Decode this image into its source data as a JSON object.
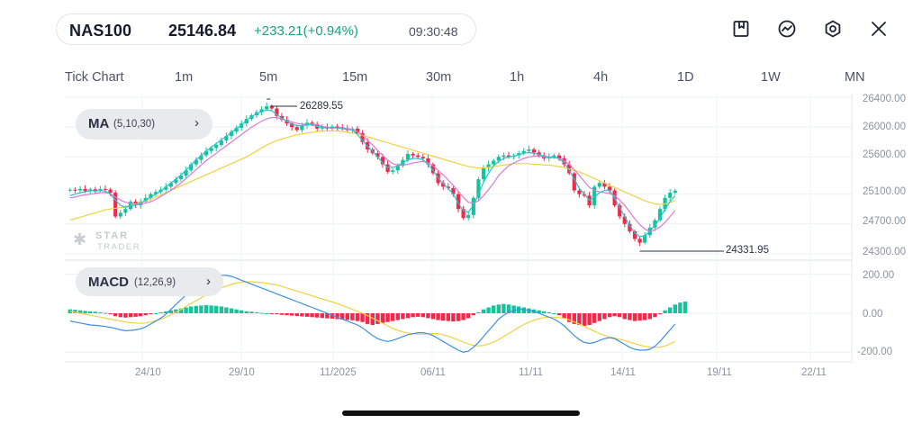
{
  "header": {
    "symbol": "NAS100",
    "price": "25146.84",
    "change": "+233.21(+0.94%)",
    "time": "09:30:48",
    "icons": [
      "bookmark-icon",
      "indicator-icon",
      "settings-icon",
      "close-icon"
    ]
  },
  "timeframes": [
    "Tick Chart",
    "1m",
    "5m",
    "15m",
    "30m",
    "1h",
    "4h",
    "1D",
    "1W",
    "MN"
  ],
  "ma_badge": {
    "name": "MA",
    "params": "(5,10,30)",
    "chevron": "›"
  },
  "macd_badge": {
    "name": "MACD",
    "params": "(12,26,9)",
    "chevron": "›"
  },
  "watermark": {
    "brand": "STAR",
    "sub": "TRADER"
  },
  "colors": {
    "up": "#15c39a",
    "down": "#f0284a",
    "ma5": "#27c3d2",
    "ma10": "#d97ad6",
    "ma30": "#f0d240",
    "macd_line": "#3d8fe3",
    "signal_line": "#f0d240"
  },
  "chart_data": {
    "type": "candlestick",
    "price_axis": {
      "ticks": [
        "26400.00",
        "26000.00",
        "25600.00",
        "25100.00",
        "24700.00",
        "24300.00"
      ],
      "range": [
        24250,
        26450
      ]
    },
    "macd_axis": {
      "ticks": [
        "200.00",
        "0.00",
        "-200.00"
      ],
      "range": [
        -250,
        250
      ]
    },
    "x_ticks": [
      "24/10",
      "29/10",
      "11/2025",
      "06/11",
      "11/11",
      "14/11",
      "19/11",
      "22/11"
    ],
    "annotations": {
      "high": "26289.55",
      "low": "24331.95"
    },
    "close": [
      25160,
      25150,
      25170,
      25140,
      25165,
      25150,
      25170,
      25160,
      25120,
      24800,
      24850,
      24900,
      25000,
      24950,
      25000,
      25050,
      25100,
      25130,
      25160,
      25200,
      25250,
      25300,
      25350,
      25420,
      25500,
      25560,
      25620,
      25680,
      25720,
      25760,
      25820,
      25880,
      25940,
      25990,
      26050,
      26110,
      26160,
      26200,
      26240,
      26280,
      26250,
      26150,
      26100,
      26050,
      26000,
      25960,
      26020,
      26060,
      26040,
      25980,
      26000,
      25980,
      26010,
      26000,
      25980,
      25960,
      25980,
      25920,
      25800,
      25700,
      25650,
      25600,
      25500,
      25400,
      25420,
      25480,
      25560,
      25640,
      25620,
      25600,
      25580,
      25500,
      25380,
      25250,
      25200,
      25180,
      25100,
      24900,
      24780,
      24820,
      25050,
      25300,
      25450,
      25500,
      25550,
      25600,
      25620,
      25600,
      25620,
      25650,
      25680,
      25700,
      25660,
      25620,
      25580,
      25600,
      25620,
      25580,
      25500,
      25380,
      25150,
      25100,
      25080,
      24950,
      25200,
      25250,
      25200,
      25150,
      24950,
      24800,
      24700,
      24600,
      24500,
      24450,
      24550,
      24650,
      24750,
      24900,
      25050,
      25120,
      25146.84
    ],
    "ma5": [
      25080,
      25100,
      25120,
      25130,
      25150,
      25140,
      25150,
      25140,
      25100,
      25020,
      24950,
      24920,
      24950,
      24950,
      24980,
      25020,
      25060,
      25100,
      25140,
      25200,
      25250,
      25300,
      25360,
      25420,
      25490,
      25560,
      25620,
      25680,
      25730,
      25780,
      25830,
      25880,
      25930,
      25980,
      26030,
      26090,
      26140,
      26180,
      26210,
      26230,
      26220,
      26170,
      26120,
      26080,
      26040,
      26020,
      26020,
      26030,
      26030,
      26010,
      26000,
      25990,
      26000,
      25990,
      25980,
      25970,
      25960,
      25900,
      25820,
      25740,
      25680,
      25600,
      25520,
      25460,
      25460,
      25480,
      25520,
      25560,
      25580,
      25580,
      25560,
      25500,
      25420,
      25320,
      25240,
      25180,
      25100,
      24980,
      24880,
      24860,
      24950,
      25100,
      25260,
      25380,
      25480,
      25540,
      25580,
      25600,
      25610,
      25630,
      25650,
      25660,
      25650,
      25630,
      25610,
      25600,
      25600,
      25580,
      25520,
      25420,
      25300,
      25180,
      25100,
      25020,
      25060,
      25120,
      25150,
      25150,
      25050,
      24920,
      24800,
      24680,
      24580,
      24530,
      24540,
      24600,
      24680,
      24780,
      24900,
      25000,
      25080
    ],
    "ma10": [
      25050,
      25060,
      25080,
      25090,
      25100,
      25110,
      25120,
      25120,
      25110,
      25060,
      25020,
      24990,
      24980,
      24970,
      24970,
      24980,
      25000,
      25030,
      25070,
      25110,
      25150,
      25200,
      25250,
      25310,
      25370,
      25430,
      25490,
      25550,
      25600,
      25650,
      25700,
      25750,
      25800,
      25850,
      25900,
      25950,
      26000,
      26040,
      26080,
      26110,
      26130,
      26130,
      26110,
      26090,
      26070,
      26050,
      26040,
      26040,
      26040,
      26030,
      26010,
      26000,
      25990,
      25990,
      25990,
      25980,
      25970,
      25940,
      25890,
      25830,
      25760,
      25690,
      25620,
      25560,
      25510,
      25490,
      25490,
      25500,
      25520,
      25530,
      25540,
      25520,
      25480,
      25420,
      25360,
      25290,
      25220,
      25140,
      25060,
      24990,
      24980,
      25010,
      25080,
      25160,
      25250,
      25350,
      25420,
      25480,
      25520,
      25550,
      25580,
      25600,
      25610,
      25610,
      25600,
      25590,
      25590,
      25580,
      25550,
      25500,
      25430,
      25350,
      25270,
      25190,
      25150,
      25130,
      25120,
      25110,
      25080,
      25020,
      24950,
      24860,
      24770,
      24690,
      24630,
      24600,
      24620,
      24660,
      24720,
      24800,
      24880
    ],
    "ma30": [
      24750,
      24770,
      24790,
      24810,
      24830,
      24850,
      24870,
      24890,
      24900,
      24910,
      24920,
      24930,
      24950,
      24970,
      24990,
      25010,
      25030,
      25060,
      25090,
      25120,
      25150,
      25180,
      25210,
      25240,
      25270,
      25300,
      25330,
      25360,
      25390,
      25420,
      25450,
      25480,
      25510,
      25540,
      25570,
      25600,
      25640,
      25680,
      25720,
      25760,
      25790,
      25820,
      25840,
      25860,
      25880,
      25900,
      25910,
      25920,
      25930,
      25940,
      25950,
      25950,
      25950,
      25950,
      25940,
      25930,
      25920,
      25910,
      25890,
      25870,
      25850,
      25830,
      25810,
      25790,
      25770,
      25750,
      25730,
      25710,
      25690,
      25670,
      25650,
      25630,
      25610,
      25590,
      25570,
      25550,
      25530,
      25510,
      25490,
      25470,
      25460,
      25450,
      25450,
      25460,
      25470,
      25480,
      25490,
      25500,
      25510,
      25510,
      25510,
      25510,
      25500,
      25500,
      25490,
      25490,
      25480,
      25470,
      25460,
      25440,
      25420,
      25400,
      25370,
      25340,
      25310,
      25280,
      25250,
      25220,
      25190,
      25160,
      25130,
      25100,
      25070,
      25040,
      25010,
      24990,
      24970,
      24960,
      24970,
      24990,
      25010
    ],
    "macd_hist": [
      20,
      18,
      15,
      12,
      10,
      8,
      5,
      2,
      -5,
      -15,
      -20,
      -22,
      -20,
      -18,
      -15,
      -10,
      -5,
      0,
      5,
      10,
      15,
      20,
      25,
      30,
      35,
      38,
      40,
      42,
      40,
      38,
      35,
      30,
      25,
      20,
      15,
      10,
      8,
      5,
      2,
      0,
      -3,
      -5,
      -8,
      -10,
      -12,
      -14,
      -16,
      -18,
      -20,
      -22,
      -24,
      -26,
      -28,
      -30,
      -32,
      -34,
      -36,
      -40,
      -45,
      -55,
      -60,
      -55,
      -50,
      -45,
      -40,
      -35,
      -30,
      -25,
      -20,
      -18,
      -20,
      -25,
      -30,
      -35,
      -38,
      -40,
      -42,
      -40,
      -35,
      -25,
      -10,
      5,
      20,
      30,
      40,
      45,
      48,
      45,
      40,
      35,
      30,
      25,
      20,
      15,
      10,
      5,
      0,
      -10,
      -25,
      -45,
      -55,
      -60,
      -65,
      -60,
      -50,
      -40,
      -30,
      -20,
      -15,
      -20,
      -30,
      -35,
      -40,
      -38,
      -35,
      -30,
      -20,
      -5,
      15,
      30,
      45,
      55,
      60
    ],
    "macd_line": [
      -40,
      -45,
      -50,
      -55,
      -60,
      -62,
      -65,
      -68,
      -72,
      -78,
      -85,
      -90,
      -88,
      -85,
      -80,
      -70,
      -55,
      -40,
      -25,
      -5,
      20,
      45,
      70,
      95,
      120,
      140,
      160,
      175,
      185,
      190,
      195,
      195,
      190,
      180,
      170,
      160,
      150,
      140,
      130,
      120,
      110,
      100,
      90,
      80,
      70,
      60,
      50,
      40,
      30,
      20,
      10,
      0,
      -10,
      -20,
      -30,
      -40,
      -50,
      -60,
      -75,
      -95,
      -115,
      -130,
      -140,
      -145,
      -140,
      -130,
      -120,
      -110,
      -105,
      -100,
      -100,
      -105,
      -115,
      -130,
      -145,
      -160,
      -175,
      -190,
      -200,
      -195,
      -175,
      -150,
      -120,
      -90,
      -60,
      -30,
      -10,
      5,
      15,
      20,
      20,
      15,
      10,
      0,
      -10,
      -20,
      -30,
      -45,
      -65,
      -90,
      -115,
      -135,
      -150,
      -155,
      -150,
      -140,
      -130,
      -125,
      -130,
      -145,
      -160,
      -175,
      -185,
      -190,
      -190,
      -185,
      -170,
      -145,
      -115,
      -85,
      -55
    ],
    "signal_line": [
      10,
      5,
      0,
      -5,
      -10,
      -15,
      -20,
      -25,
      -30,
      -35,
      -40,
      -45,
      -48,
      -50,
      -52,
      -50,
      -45,
      -38,
      -30,
      -20,
      -8,
      5,
      20,
      35,
      50,
      65,
      80,
      95,
      108,
      120,
      130,
      140,
      148,
      155,
      160,
      162,
      162,
      160,
      158,
      155,
      150,
      145,
      138,
      130,
      122,
      114,
      106,
      98,
      90,
      82,
      74,
      66,
      58,
      50,
      40,
      30,
      20,
      10,
      0,
      -12,
      -25,
      -38,
      -52,
      -65,
      -78,
      -88,
      -96,
      -102,
      -106,
      -108,
      -108,
      -106,
      -104,
      -105,
      -110,
      -118,
      -128,
      -138,
      -148,
      -158,
      -165,
      -168,
      -165,
      -158,
      -148,
      -135,
      -120,
      -104,
      -88,
      -72,
      -58,
      -46,
      -36,
      -28,
      -22,
      -20,
      -20,
      -22,
      -26,
      -34,
      -44,
      -56,
      -68,
      -80,
      -92,
      -104,
      -114,
      -122,
      -128,
      -134,
      -140,
      -148,
      -156,
      -164,
      -170,
      -174,
      -176,
      -174,
      -168,
      -158,
      -145
    ]
  }
}
